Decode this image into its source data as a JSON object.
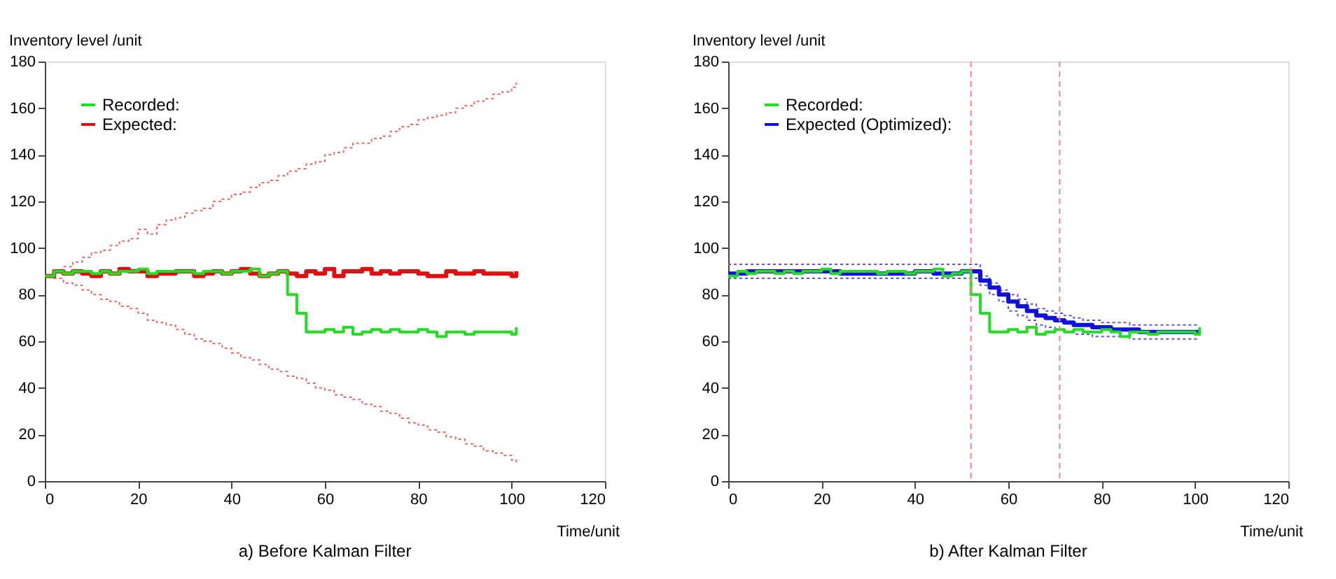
{
  "chart_data": [
    {
      "type": "step",
      "title": "a) Before Kalman Filter",
      "xlabel": "Time/unit",
      "ylabel": "Inventory level /unit",
      "x": [
        0,
        2,
        4,
        6,
        8,
        10,
        12,
        14,
        16,
        18,
        20,
        22,
        24,
        26,
        28,
        30,
        32,
        34,
        36,
        38,
        40,
        42,
        44,
        46,
        48,
        50,
        52,
        54,
        56,
        58,
        60,
        62,
        64,
        66,
        68,
        70,
        72,
        74,
        76,
        78,
        80,
        82,
        84,
        86,
        88,
        90,
        92,
        94,
        96,
        98,
        100,
        101
      ],
      "series": [
        {
          "name": "Recorded:",
          "color": "#22dd22",
          "values": [
            88,
            90,
            89,
            90,
            90,
            89,
            90,
            89,
            90,
            90,
            91,
            89,
            90,
            90,
            90,
            90,
            89,
            90,
            90,
            89,
            90,
            90,
            91,
            88,
            89,
            90,
            80,
            72,
            64,
            64,
            65,
            64,
            66,
            63,
            64,
            65,
            64,
            65,
            64,
            64,
            65,
            64,
            62,
            64,
            64,
            63,
            64,
            64,
            64,
            64,
            63,
            66
          ]
        },
        {
          "name": "Expected:",
          "color": "#dd1111",
          "values": [
            88,
            90,
            89,
            90,
            89,
            88,
            90,
            89,
            91,
            90,
            90,
            88,
            89,
            89,
            90,
            90,
            88,
            89,
            90,
            89,
            90,
            91,
            89,
            88,
            89,
            90,
            89,
            88,
            90,
            89,
            91,
            88,
            90,
            90,
            91,
            89,
            90,
            89,
            90,
            90,
            89,
            88,
            88,
            90,
            89,
            89,
            90,
            89,
            89,
            89,
            88,
            90
          ]
        },
        {
          "color": "#ee6666",
          "line_style": "dotted",
          "values": [
            88,
            90,
            92,
            94,
            96,
            98,
            99,
            101,
            103,
            104,
            108,
            106,
            110,
            112,
            113,
            115,
            116,
            117,
            120,
            121,
            123,
            124,
            126,
            128,
            129,
            131,
            133,
            134,
            136,
            137,
            140,
            141,
            143,
            145,
            145,
            147,
            148,
            150,
            152,
            153,
            155,
            156,
            157,
            158,
            160,
            161,
            163,
            164,
            166,
            167,
            169,
            171
          ]
        },
        {
          "color": "#ee6666",
          "line_style": "dotted",
          "values": [
            88,
            87,
            85,
            84,
            82,
            80,
            78,
            77,
            75,
            74,
            72,
            69,
            68,
            67,
            65,
            63,
            61,
            60,
            59,
            57,
            55,
            53,
            52,
            50,
            48,
            47,
            45,
            44,
            42,
            40,
            39,
            37,
            36,
            35,
            33,
            32,
            30,
            29,
            27,
            25,
            24,
            22,
            21,
            19,
            18,
            16,
            15,
            13,
            12,
            11,
            9,
            8
          ]
        }
      ],
      "xlim": [
        0,
        120
      ],
      "xticks": [
        0,
        20,
        40,
        60,
        80,
        100,
        120
      ],
      "ylim": [
        0,
        180
      ],
      "yticks": [
        0,
        20,
        40,
        60,
        80,
        100,
        120,
        140,
        160,
        180
      ],
      "grid": false,
      "legend": "top left",
      "line_style": "solid"
    },
    {
      "type": "step",
      "title": "b) After Kalman Filter",
      "xlabel": "Time/unit",
      "ylabel": "Inventory level /unit",
      "x": [
        0,
        2,
        4,
        6,
        8,
        10,
        12,
        14,
        16,
        18,
        20,
        22,
        24,
        26,
        28,
        30,
        32,
        34,
        36,
        38,
        40,
        42,
        44,
        46,
        48,
        50,
        52,
        54,
        56,
        58,
        60,
        62,
        64,
        66,
        68,
        70,
        72,
        74,
        76,
        78,
        80,
        82,
        84,
        86,
        88,
        90,
        92,
        94,
        96,
        98,
        100,
        101
      ],
      "series": [
        {
          "name": "Recorded:",
          "color": "#22dd22",
          "values": [
            88,
            90,
            89,
            90,
            90,
            89,
            90,
            89,
            90,
            90,
            91,
            89,
            90,
            90,
            90,
            90,
            89,
            90,
            90,
            89,
            90,
            90,
            91,
            88,
            89,
            90,
            80,
            72,
            64,
            64,
            65,
            64,
            66,
            63,
            64,
            65,
            64,
            65,
            64,
            64,
            65,
            64,
            62,
            64,
            64,
            63,
            64,
            64,
            64,
            64,
            63,
            66
          ]
        },
        {
          "name": "Expected (Optimized):",
          "color": "#1111dd",
          "values": [
            89,
            89,
            90,
            90,
            90,
            90,
            90,
            90,
            90,
            90,
            90,
            90,
            89,
            89,
            89,
            89,
            89,
            89,
            89,
            89,
            90,
            90,
            89,
            89,
            89,
            90,
            90,
            86,
            83,
            80,
            77,
            75,
            73,
            71,
            70,
            69,
            68,
            67,
            67,
            66,
            66,
            65,
            65,
            65,
            64,
            64,
            64,
            64,
            64,
            64,
            64,
            64
          ]
        },
        {
          "color": "#5555ee",
          "line_style": "dotted",
          "values": [
            93,
            93,
            93,
            93,
            93,
            93,
            93,
            93,
            93,
            93,
            93,
            93,
            93,
            93,
            93,
            93,
            93,
            93,
            93,
            93,
            93,
            93,
            93,
            93,
            93,
            93,
            93,
            88,
            85,
            82,
            80,
            78,
            76,
            74,
            73,
            72,
            71,
            70,
            69,
            69,
            68,
            68,
            68,
            67,
            67,
            67,
            67,
            67,
            67,
            67,
            67,
            67
          ]
        },
        {
          "color": "#5555ee",
          "line_style": "dotted",
          "values": [
            87,
            87,
            87,
            87,
            87,
            87,
            87,
            87,
            87,
            87,
            87,
            87,
            87,
            87,
            87,
            87,
            87,
            87,
            87,
            87,
            87,
            87,
            87,
            87,
            87,
            87,
            87,
            84,
            80,
            77,
            73,
            71,
            69,
            67,
            66,
            65,
            64,
            63,
            63,
            62,
            62,
            62,
            62,
            61,
            61,
            61,
            61,
            61,
            61,
            61,
            61,
            61
          ]
        }
      ],
      "ref_lines": [
        {
          "axis": "x",
          "value": 52,
          "color": "#ee8888",
          "line_style": "dashed"
        },
        {
          "axis": "x",
          "value": 71,
          "color": "#ee8888",
          "line_style": "dashed"
        }
      ],
      "xlim": [
        0,
        120
      ],
      "xticks": [
        0,
        20,
        40,
        60,
        80,
        100,
        120
      ],
      "ylim": [
        0,
        180
      ],
      "yticks": [
        0,
        20,
        40,
        60,
        80,
        100,
        120,
        140,
        160,
        180
      ],
      "grid": false,
      "legend": "top left",
      "line_style": "solid"
    }
  ]
}
